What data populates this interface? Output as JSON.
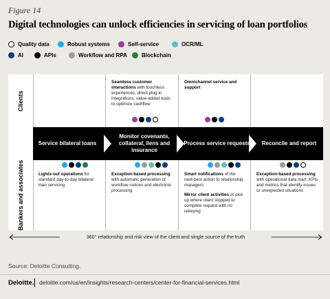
{
  "figure_label": "Figure 14",
  "title": "Digital technologies can unlock efficiencies in servicing of loan portfolios",
  "legend": [
    {
      "key": "quality",
      "label": "Quality data",
      "color": "#ffffff",
      "outline": true
    },
    {
      "key": "robust",
      "label": "Robust systems",
      "color": "#2ea7e0"
    },
    {
      "key": "self",
      "label": "Self-service",
      "color": "#9c3f98"
    },
    {
      "key": "ocr",
      "label": "OCR/ML",
      "color": "#62bcbc"
    },
    {
      "key": "ai",
      "label": "AI",
      "color": "#0a3f73"
    },
    {
      "key": "apis",
      "label": "APIs",
      "color": "#000000"
    },
    {
      "key": "workflow",
      "label": "Workflow and RPA",
      "color": "#9b9b9b"
    },
    {
      "key": "blockchain",
      "label": "Blockchain",
      "color": "#2e7a3c"
    }
  ],
  "rows": {
    "clients": "Clients",
    "bankers": "Bankers and associates"
  },
  "stages": [
    "Service bilateral loans",
    "Monitor covenants, collateral, liens and insurance",
    "Process service requests",
    "Reconcile and report"
  ],
  "client_cells": [
    {
      "col": 1,
      "bold": "Seamless customer interactions",
      "text": " with touchless experiences, direct plug-in integrations, value-added tools to optimize cashflow",
      "dots": [
        "self",
        "apis",
        "ai",
        "quality"
      ]
    },
    {
      "col": 2,
      "bold": "Omnichannel service and support",
      "text": "",
      "dots": [
        "self",
        "apis",
        "ai"
      ]
    }
  ],
  "banker_cells": [
    {
      "col": 0,
      "bold": "Lights-out operations",
      "text": " for standard day-to-day bilateral loan servicing",
      "dots": [
        "robust",
        "apis",
        "ai",
        "blockchain"
      ]
    },
    {
      "col": 1,
      "bold": "Exception-based processing",
      "text": " with automatic generation of workflow notices and electronic processing",
      "dots": [
        "robust",
        "workflow",
        "ocr",
        "apis",
        "ai"
      ]
    },
    {
      "col": 2,
      "bold": "Smart notifications",
      "text": " of the next-best action to relationship managers",
      "bold2": "Mirror client activities",
      "text2": " or pick up where client stopped to complete request with no rekeying",
      "dots": [
        "robust",
        "workflow",
        "ocr",
        "apis",
        "ai"
      ]
    },
    {
      "col": 3,
      "bold": "Exception-based processing",
      "text": " with operational data mart, KPIs and metrics that identify issues or unexpected situations",
      "dots": [
        "workflow",
        "apis",
        "ai",
        "quality"
      ]
    }
  ],
  "bottom_arrow_text": "360° relationship and risk view of the client and single source of the truth",
  "source": "Source: Deloitte Consulting.",
  "footer": {
    "logo": "Deloitte.",
    "url": "deloitte.com/us/en/insights/research-centers/center-for-financial-services.html"
  }
}
